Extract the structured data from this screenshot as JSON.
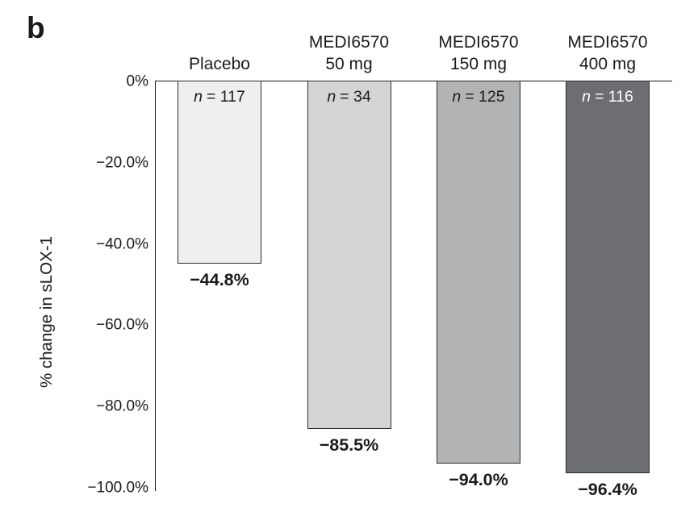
{
  "panel_label": "b",
  "chart_data": {
    "type": "bar",
    "title": "",
    "xlabel": "",
    "ylabel": "% change in sLOX-1",
    "ylim": [
      -100,
      0
    ],
    "grid": false,
    "legend": null,
    "axis_color": "#1a1a1a",
    "bar_border_color": "#2e2e2e",
    "yticks": [
      {
        "value": 0,
        "label": "0%"
      },
      {
        "value": -20,
        "label": "−20.0%"
      },
      {
        "value": -40,
        "label": "−40.0%"
      },
      {
        "value": -60,
        "label": "−60.0%"
      },
      {
        "value": -80,
        "label": "−80.0%"
      },
      {
        "value": -100,
        "label": "−100.0%"
      }
    ],
    "categories": [
      "Placebo",
      "MEDI6570 50 mg",
      "MEDI6570 150 mg",
      "MEDI6570 400 mg"
    ],
    "values": [
      -44.8,
      -85.5,
      -94.0,
      -96.4
    ],
    "columns": [
      {
        "id": "placebo",
        "label_lines": [
          "Placebo"
        ],
        "n_label": "n = 117",
        "value": -44.8,
        "value_label": "−44.8%",
        "fill": "#efefef",
        "n_color": "#1a1a1a"
      },
      {
        "id": "medi6570-50mg",
        "label_lines": [
          "MEDI6570",
          "50 mg"
        ],
        "n_label": "n = 34",
        "value": -85.5,
        "value_label": "−85.5%",
        "fill": "#d3d4d5",
        "n_color": "#1a1a1a"
      },
      {
        "id": "medi6570-150mg",
        "label_lines": [
          "MEDI6570",
          "150 mg"
        ],
        "n_label": "n = 125",
        "value": -94.0,
        "value_label": "−94.0%",
        "fill": "#b1b3b5",
        "n_color": "#1a1a1a"
      },
      {
        "id": "medi6570-400mg",
        "label_lines": [
          "MEDI6570",
          "400 mg"
        ],
        "n_label": "n = 116",
        "value": -96.4,
        "value_label": "−96.4%",
        "fill": "#6c6e71",
        "n_color": "#ffffff"
      }
    ]
  }
}
